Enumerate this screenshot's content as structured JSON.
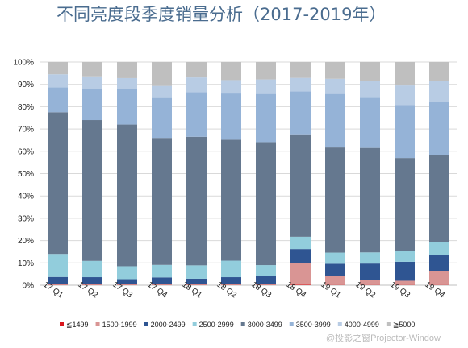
{
  "title": "不同亮度段季度销量分析（2017-2019年）",
  "watermark": "@投影之窗Projector-Window",
  "chart_data": {
    "type": "bar",
    "stacked": true,
    "title": "不同亮度段季度销量分析（2017-2019年）",
    "categories": [
      "17 Q1",
      "17 Q2",
      "17 Q3",
      "17 Q4",
      "18 Q1",
      "18 Q2",
      "18 Q3",
      "18 Q4",
      "19 Q1",
      "19 Q2",
      "19 Q3",
      "19 Q4"
    ],
    "y_ticks": [
      "0%",
      "10%",
      "20%",
      "30%",
      "40%",
      "50%",
      "60%",
      "70%",
      "80%",
      "90%",
      "100%"
    ],
    "ylim": [
      0,
      100
    ],
    "legend_position": "bottom",
    "series": [
      {
        "name": "≦1499",
        "color": "#d9151c",
        "values": [
          0.1,
          0.1,
          0.1,
          0.1,
          0.1,
          0.1,
          0.1,
          0.2,
          0.1,
          0.1,
          0.1,
          0.1
        ]
      },
      {
        "name": "1500-1999",
        "color": "#d99594",
        "values": [
          0.6,
          0.4,
          0.4,
          0.4,
          0.4,
          0.4,
          0.4,
          9.8,
          3.9,
          2.1,
          1.9,
          6.2
        ]
      },
      {
        "name": "2000-2499",
        "color": "#2f5592",
        "values": [
          3.0,
          3.1,
          2.2,
          3.0,
          2.4,
          3.1,
          3.5,
          6.2,
          5.6,
          7.5,
          8.5,
          7.4
        ]
      },
      {
        "name": "2500-2999",
        "color": "#92cddc",
        "values": [
          10.3,
          7.3,
          5.8,
          5.6,
          6.0,
          7.4,
          5.0,
          5.5,
          5.0,
          5.0,
          5.0,
          5.6
        ]
      },
      {
        "name": "3000-3499",
        "color": "#65788f",
        "values": [
          63.5,
          63.1,
          63.5,
          56.9,
          57.6,
          54.2,
          55.1,
          45.9,
          47.1,
          46.8,
          41.5,
          38.9
        ]
      },
      {
        "name": "3500-3999",
        "color": "#95b3d7",
        "values": [
          11.2,
          14.0,
          16.0,
          17.9,
          20.0,
          20.7,
          21.6,
          19.3,
          24.0,
          22.5,
          23.8,
          23.8
        ]
      },
      {
        "name": "4000-4999",
        "color": "#b8cce4",
        "values": [
          5.8,
          5.6,
          4.8,
          5.4,
          6.6,
          6.0,
          6.5,
          6.0,
          6.8,
          7.6,
          8.7,
          9.4
        ]
      },
      {
        "name": "≧5000",
        "color": "#bfbfbf",
        "values": [
          5.5,
          6.4,
          7.2,
          10.7,
          6.9,
          8.1,
          7.8,
          7.1,
          7.5,
          8.4,
          10.5,
          8.6
        ]
      }
    ]
  }
}
